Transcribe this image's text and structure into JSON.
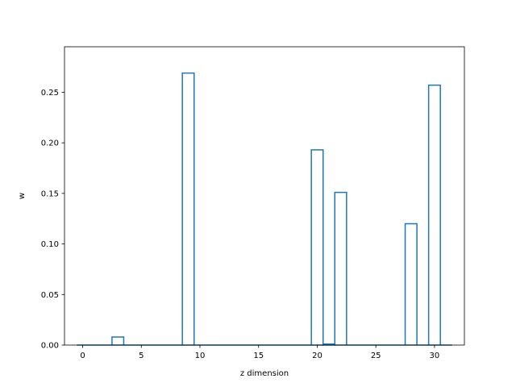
{
  "chart_data": {
    "type": "bar",
    "style": "step-outline",
    "title": "",
    "xlabel": "z dimension",
    "ylabel": "w",
    "xlim": [
      -1.55,
      32.55
    ],
    "ylim": [
      0,
      0.295
    ],
    "xticks": [
      0,
      5,
      10,
      15,
      20,
      25,
      30
    ],
    "yticks": [
      0.0,
      0.05,
      0.1,
      0.15,
      0.2,
      0.25
    ],
    "ytick_labels": [
      "0.00",
      "0.05",
      "0.10",
      "0.15",
      "0.20",
      "0.25"
    ],
    "grid": false,
    "line_color": "#1f77b4",
    "x": [
      0,
      1,
      2,
      3,
      4,
      5,
      6,
      7,
      8,
      9,
      10,
      11,
      12,
      13,
      14,
      15,
      16,
      17,
      18,
      19,
      20,
      21,
      22,
      23,
      24,
      25,
      26,
      27,
      28,
      29,
      30,
      31
    ],
    "values": [
      0,
      0,
      0,
      0.008,
      0,
      0,
      0,
      0,
      0,
      0.269,
      0,
      0,
      0,
      0,
      0,
      0,
      0,
      0,
      0,
      0,
      0.193,
      0.001,
      0.151,
      0,
      0,
      0,
      0,
      0,
      0.12,
      0,
      0.257,
      0
    ]
  }
}
